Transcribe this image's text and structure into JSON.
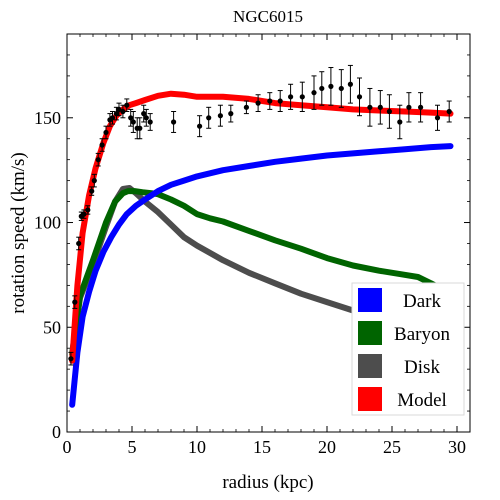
{
  "chart_data": {
    "type": "line",
    "title": "NGC6015",
    "xlabel": "radius (kpc)",
    "ylabel": "rotation speed (km/s)",
    "xlim": [
      0,
      31
    ],
    "ylim": [
      0,
      190
    ],
    "xticks": [
      0,
      5,
      10,
      15,
      20,
      25,
      30
    ],
    "yticks": [
      0,
      50,
      100,
      150
    ],
    "legend_position": "bottom-right",
    "series": [
      {
        "name": "Dark",
        "color": "#0000ff",
        "x": [
          0.4,
          0.8,
          1.2,
          1.7,
          2.2,
          2.8,
          3.4,
          4.0,
          4.6,
          5.3,
          6.0,
          7.0,
          8.0,
          9.0,
          10.0,
          12.0,
          14.0,
          16.0,
          18.0,
          20.0,
          22.0,
          24.0,
          26.0,
          28.0,
          29.5
        ],
        "y": [
          13,
          38,
          55,
          67,
          77,
          86,
          93,
          99,
          104,
          108,
          111,
          115,
          118,
          120,
          122,
          125,
          127,
          129,
          130.5,
          132,
          133,
          134,
          135,
          136,
          136.5
        ]
      },
      {
        "name": "Baryon",
        "color": "#006400",
        "x": [
          0.4,
          1.0,
          2.0,
          3.0,
          3.7,
          4.3,
          4.7,
          5.2,
          5.8,
          6.5,
          7.0,
          8.0,
          9.0,
          10.0,
          11.0,
          12.0,
          14.0,
          16.0,
          18.0,
          20.0,
          22.0,
          24.0,
          25.5,
          27.0,
          28.0,
          29.5
        ],
        "y": [
          37,
          65,
          82,
          100,
          110,
          114,
          115,
          115,
          114.5,
          114,
          113.5,
          111,
          108,
          104,
          102,
          100.5,
          96,
          91.5,
          87.5,
          83,
          79.5,
          77,
          75.5,
          74,
          71,
          66
        ]
      },
      {
        "name": "Disk",
        "color": "#4d4d4d",
        "x": [
          0.4,
          1.0,
          2.0,
          3.0,
          3.7,
          4.3,
          4.8,
          5.3,
          6.0,
          7.0,
          8.0,
          9.0,
          10.0,
          12.0,
          14.0,
          16.0,
          18.0,
          20.0,
          22.0,
          24.0,
          26.0,
          28.0,
          29.5
        ],
        "y": [
          38,
          64,
          80,
          98,
          110,
          116,
          116.5,
          114,
          110,
          105,
          99,
          93,
          89,
          82,
          76,
          71,
          66,
          62,
          58,
          55,
          52.5,
          50.5,
          49
        ]
      },
      {
        "name": "Model",
        "color": "#ff0000",
        "x": [
          0.4,
          0.8,
          1.2,
          1.7,
          2.2,
          2.8,
          3.3,
          3.8,
          4.3,
          4.8,
          5.3,
          6.0,
          7.0,
          8.0,
          9.0,
          10.0,
          12.0,
          14.0,
          16.0,
          18.0,
          20.0,
          22.0,
          24.0,
          26.0,
          28.0,
          29.5
        ],
        "y": [
          34,
          70,
          95,
          113,
          126,
          138,
          146,
          151,
          154,
          156,
          157,
          158.5,
          160.5,
          161.5,
          161,
          160,
          160,
          159,
          157,
          156,
          155,
          154,
          153.5,
          153,
          152.5,
          152
        ]
      }
    ],
    "observed": {
      "x": [
        0.3,
        0.6,
        0.9,
        1.1,
        1.3,
        1.6,
        1.9,
        2.1,
        2.4,
        2.7,
        3.0,
        3.3,
        3.5,
        3.8,
        4.0,
        4.3,
        4.6,
        4.9,
        5.1,
        5.4,
        5.6,
        5.9,
        6.1,
        6.4,
        8.2,
        10.2,
        10.9,
        11.8,
        12.6,
        13.8,
        14.7,
        15.6,
        16.4,
        17.2,
        18.1,
        19.0,
        19.6,
        20.3,
        21.1,
        21.8,
        22.5,
        23.3,
        24.1,
        24.8,
        25.6,
        26.3,
        27.2,
        28.5,
        29.4
      ],
      "y": [
        35,
        62,
        90,
        103,
        104,
        106,
        115,
        120,
        130,
        137,
        143,
        149,
        150,
        152,
        154,
        153,
        156,
        150,
        148,
        145,
        145,
        152,
        150,
        148,
        148,
        146,
        150,
        151,
        152,
        155,
        157,
        158,
        158,
        160,
        160,
        162,
        164,
        165,
        164,
        166,
        160,
        155,
        155,
        153,
        148,
        155,
        155,
        150,
        153
      ],
      "err": [
        3,
        3,
        3,
        2,
        2,
        2,
        2,
        3,
        3,
        3,
        3,
        3,
        3,
        3,
        3,
        3,
        3,
        4,
        5,
        5,
        5,
        4,
        4,
        4,
        5,
        5,
        5,
        5,
        4,
        3,
        4,
        4,
        5,
        6,
        7,
        8,
        8,
        9,
        9,
        9,
        9,
        9,
        8,
        8,
        8,
        7,
        7,
        6,
        5
      ]
    }
  }
}
